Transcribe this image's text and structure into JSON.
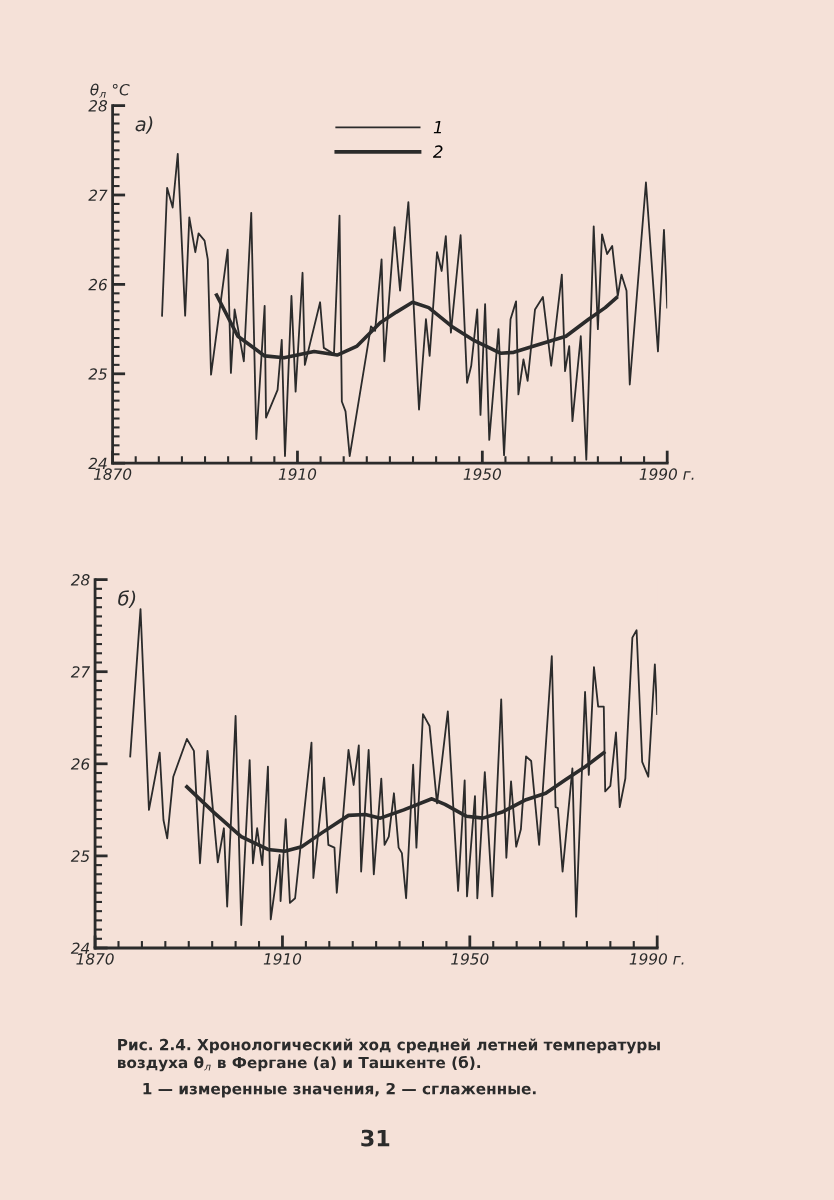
{
  "chart_data": [
    {
      "type": "line",
      "title": "а)",
      "ylabel": "θ$_{л}$ °C",
      "legend": "top",
      "grid": false,
      "marker": "none",
      "line_style": "solid",
      "xlim": [
        1870,
        1990
      ],
      "ylim": [
        24,
        28
      ],
      "xticks": [
        1870,
        {
          "value": 1875,
          "label": null
        },
        {
          "value": 1880,
          "label": null
        },
        {
          "value": 1885,
          "label": null
        },
        {
          "value": 1890,
          "label": null
        },
        {
          "value": 1895,
          "label": null
        },
        {
          "value": 1900,
          "label": null
        },
        {
          "value": 1905,
          "label": null
        },
        1910,
        {
          "value": 1915,
          "label": null
        },
        {
          "value": 1920,
          "label": null
        },
        {
          "value": 1925,
          "label": null
        },
        {
          "value": 1930,
          "label": null
        },
        {
          "value": 1935,
          "label": null
        },
        {
          "value": 1940,
          "label": null
        },
        {
          "value": 1945,
          "label": null
        },
        1950,
        {
          "value": 1955,
          "label": null
        },
        {
          "value": 1960,
          "label": null
        },
        {
          "value": 1965,
          "label": null
        },
        {
          "value": 1970,
          "label": null
        },
        {
          "value": 1975,
          "label": null
        },
        {
          "value": 1980,
          "label": null
        },
        {
          "value": 1985,
          "label": null
        },
        {
          "value": 1990,
          "label": "1990 г."
        }
      ],
      "yticks": [
        24,
        {
          "value": 24.1,
          "label": null
        },
        {
          "value": 24.2,
          "label": null
        },
        {
          "value": 24.3,
          "label": null
        },
        {
          "value": 24.4,
          "label": null
        },
        {
          "value": 24.5,
          "label": null
        },
        {
          "value": 24.6,
          "label": null
        },
        {
          "value": 24.7,
          "label": null
        },
        {
          "value": 24.8,
          "label": null
        },
        {
          "value": 24.9,
          "label": null
        },
        25,
        {
          "value": 25.1,
          "label": null
        },
        {
          "value": 25.2,
          "label": null
        },
        {
          "value": 25.3,
          "label": null
        },
        {
          "value": 25.4,
          "label": null
        },
        {
          "value": 25.5,
          "label": null
        },
        {
          "value": 25.6,
          "label": null
        },
        {
          "value": 25.7,
          "label": null
        },
        {
          "value": 25.8,
          "label": null
        },
        {
          "value": 25.9,
          "label": null
        },
        26,
        {
          "value": 26.1,
          "label": null
        },
        {
          "value": 26.2,
          "label": null
        },
        {
          "value": 26.3,
          "label": null
        },
        {
          "value": 26.4,
          "label": null
        },
        {
          "value": 26.5,
          "label": null
        },
        {
          "value": 26.6,
          "label": null
        },
        {
          "value": 26.7,
          "label": null
        },
        {
          "value": 26.8,
          "label": null
        },
        {
          "value": 26.9,
          "label": null
        },
        27,
        {
          "value": 27.1,
          "label": null
        },
        {
          "value": 27.2,
          "label": null
        },
        {
          "value": 27.3,
          "label": null
        },
        {
          "value": 27.4,
          "label": null
        },
        {
          "value": 27.5,
          "label": null
        },
        {
          "value": 27.6,
          "label": null
        },
        {
          "value": 27.7,
          "label": null
        },
        {
          "value": 27.8,
          "label": null
        },
        {
          "value": 27.9,
          "label": null
        },
        28
      ],
      "series": [
        {
          "name": "1",
          "color": "#2b2b2b",
          "x": [
            1880.7,
            1881.8,
            1883.0,
            1884.1,
            1885.7,
            1886.6,
            1887.9,
            1888.6,
            1889.9,
            1890.6,
            1891.3,
            1894.9,
            1895.6,
            1896.4,
            1898.4,
            1900.0,
            1901.1,
            1902.9,
            1903.2,
            1905.7,
            1906.6,
            1907.3,
            1908.7,
            1909.6,
            1911.1,
            1911.6,
            1914.9,
            1915.7,
            1917.9,
            1919.1,
            1919.6,
            1920.4,
            1921.3,
            1925.9,
            1926.8,
            1928.2,
            1928.8,
            1931.0,
            1932.2,
            1934.0,
            1936.3,
            1937.8,
            1938.6,
            1940.2,
            1941.2,
            1942.1,
            1943.2,
            1945.3,
            1946.7,
            1947.6,
            1948.9,
            1949.6,
            1950.6,
            1951.5,
            1953.5,
            1954.7,
            1956.1,
            1957.3,
            1957.8,
            1958.9,
            1959.8,
            1961.4,
            1963.1,
            1964.9,
            1967.2,
            1967.9,
            1968.8,
            1969.5,
            1971.3,
            1972.5,
            1974.1,
            1975.0,
            1975.9,
            1977.0,
            1978.1,
            1979.3,
            1980.1,
            1981.2,
            1981.9,
            1985.4,
            1988.0,
            1989.3,
            1990.0
          ],
          "values": [
            25.65,
            27.08,
            26.86,
            27.46,
            25.65,
            26.75,
            26.36,
            26.57,
            26.49,
            26.28,
            24.99,
            26.39,
            25.01,
            25.72,
            25.14,
            26.8,
            24.27,
            25.76,
            24.51,
            24.82,
            25.38,
            24.08,
            25.87,
            24.8,
            26.13,
            25.1,
            25.8,
            25.29,
            25.22,
            26.77,
            24.69,
            24.58,
            24.08,
            25.53,
            25.48,
            26.28,
            25.14,
            26.64,
            25.93,
            26.92,
            24.6,
            25.61,
            25.2,
            26.36,
            26.15,
            26.54,
            25.46,
            26.55,
            24.9,
            25.09,
            25.72,
            24.54,
            25.78,
            24.26,
            25.5,
            24.09,
            25.61,
            25.81,
            24.77,
            25.16,
            24.92,
            25.72,
            25.86,
            25.09,
            26.11,
            25.03,
            25.31,
            24.47,
            25.42,
            24.04,
            26.65,
            25.5,
            26.56,
            26.34,
            26.43,
            25.87,
            26.11,
            25.93,
            24.88,
            27.14,
            25.25,
            26.61,
            25.74
          ]
        },
        {
          "name": "2",
          "color": "#2b2b2b",
          "x": [
            1892.5,
            1897.1,
            1902.9,
            1907.1,
            1913.6,
            1918.6,
            1922.9,
            1927.9,
            1931.4,
            1934.9,
            1938.4,
            1943.4,
            1948.3,
            1953.9,
            1956.8,
            1962.4,
            1968.1,
            1973.0,
            1976.6,
            1979.0
          ],
          "values": [
            25.88,
            25.42,
            25.2,
            25.18,
            25.25,
            25.21,
            25.31,
            25.57,
            25.69,
            25.8,
            25.74,
            25.53,
            25.37,
            25.23,
            25.24,
            25.33,
            25.42,
            25.61,
            25.74,
            25.85
          ]
        }
      ]
    },
    {
      "type": "line",
      "title": "б)",
      "grid": false,
      "marker": "none",
      "line_style": "solid",
      "xlim": [
        1870,
        1990
      ],
      "ylim": [
        24,
        28
      ],
      "xticks": [
        1870,
        {
          "value": 1875,
          "label": null
        },
        {
          "value": 1880,
          "label": null
        },
        {
          "value": 1885,
          "label": null
        },
        {
          "value": 1890,
          "label": null
        },
        {
          "value": 1895,
          "label": null
        },
        {
          "value": 1900,
          "label": null
        },
        {
          "value": 1905,
          "label": null
        },
        1910,
        {
          "value": 1915,
          "label": null
        },
        {
          "value": 1920,
          "label": null
        },
        {
          "value": 1925,
          "label": null
        },
        {
          "value": 1930,
          "label": null
        },
        {
          "value": 1935,
          "label": null
        },
        {
          "value": 1940,
          "label": null
        },
        {
          "value": 1945,
          "label": null
        },
        1950,
        {
          "value": 1955,
          "label": null
        },
        {
          "value": 1960,
          "label": null
        },
        {
          "value": 1965,
          "label": null
        },
        {
          "value": 1970,
          "label": null
        },
        {
          "value": 1975,
          "label": null
        },
        {
          "value": 1980,
          "label": null
        },
        {
          "value": 1985,
          "label": null
        },
        {
          "value": 1990,
          "label": "1990 г."
        }
      ],
      "yticks": [
        24,
        {
          "value": 24.1,
          "label": null
        },
        {
          "value": 24.2,
          "label": null
        },
        {
          "value": 24.3,
          "label": null
        },
        {
          "value": 24.4,
          "label": null
        },
        {
          "value": 24.5,
          "label": null
        },
        {
          "value": 24.6,
          "label": null
        },
        {
          "value": 24.7,
          "label": null
        },
        {
          "value": 24.8,
          "label": null
        },
        {
          "value": 24.9,
          "label": null
        },
        25,
        {
          "value": 25.1,
          "label": null
        },
        {
          "value": 25.2,
          "label": null
        },
        {
          "value": 25.3,
          "label": null
        },
        {
          "value": 25.4,
          "label": null
        },
        {
          "value": 25.5,
          "label": null
        },
        {
          "value": 25.6,
          "label": null
        },
        {
          "value": 25.7,
          "label": null
        },
        {
          "value": 25.8,
          "label": null
        },
        {
          "value": 25.9,
          "label": null
        },
        26,
        {
          "value": 26.1,
          "label": null
        },
        {
          "value": 26.2,
          "label": null
        },
        {
          "value": 26.3,
          "label": null
        },
        {
          "value": 26.4,
          "label": null
        },
        {
          "value": 26.5,
          "label": null
        },
        {
          "value": 26.6,
          "label": null
        },
        {
          "value": 26.7,
          "label": null
        },
        {
          "value": 26.8,
          "label": null
        },
        {
          "value": 26.9,
          "label": null
        },
        27,
        {
          "value": 27.1,
          "label": null
        },
        {
          "value": 27.2,
          "label": null
        },
        {
          "value": 27.3,
          "label": null
        },
        {
          "value": 27.4,
          "label": null
        },
        {
          "value": 27.5,
          "label": null
        },
        {
          "value": 27.6,
          "label": null
        },
        {
          "value": 27.7,
          "label": null
        },
        {
          "value": 27.8,
          "label": null
        },
        {
          "value": 27.9,
          "label": null
        },
        28
      ],
      "annotations": [
        "Рис. 2.4. Хронологический ход средней летней температуры\nвоздуха θ$_{л}$ в Фергане (а) и Ташкенте (б).",
        "1 — измеренные значения, 2 — сглаженные.",
        "31"
      ],
      "series": [
        {
          "color": "#2b2b2b",
          "x": [
            1877.5,
            1879.7,
            1881.5,
            1883.8,
            1884.6,
            1885.4,
            1886.7,
            1889.6,
            1891.1,
            1892.4,
            1894.0,
            1896.2,
            1897.5,
            1898.2,
            1900.0,
            1901.2,
            1903.0,
            1903.7,
            1904.6,
            1905.7,
            1906.9,
            1907.5,
            1909.4,
            1909.6,
            1910.7,
            1911.6,
            1912.7,
            1916.2,
            1916.6,
            1918.9,
            1919.8,
            1921.1,
            1921.6,
            1924.1,
            1925.2,
            1926.3,
            1926.8,
            1928.4,
            1929.5,
            1931.1,
            1931.8,
            1932.7,
            1933.8,
            1934.8,
            1935.5,
            1936.4,
            1937.9,
            1938.6,
            1940.0,
            1941.4,
            1943.0,
            1945.3,
            1947.5,
            1948.9,
            1949.4,
            1951.1,
            1951.6,
            1953.2,
            1954.8,
            1956.7,
            1957.8,
            1958.8,
            1959.9,
            1960.9,
            1962.0,
            1963.1,
            1964.8,
            1967.5,
            1968.3,
            1968.8,
            1969.8,
            1971.9,
            1972.7,
            1974.6,
            1975.4,
            1976.5,
            1977.4,
            1978.6,
            1978.9,
            1980.0,
            1981.2,
            1982.0,
            1983.2,
            1984.7,
            1985.6,
            1986.8,
            1988.1,
            1989.5,
            1990.0
          ],
          "values": [
            26.08,
            27.68,
            25.5,
            26.12,
            25.39,
            25.19,
            25.86,
            26.27,
            26.14,
            24.92,
            26.14,
            24.93,
            25.3,
            24.45,
            26.52,
            24.25,
            26.04,
            24.92,
            25.3,
            24.9,
            25.97,
            24.31,
            25.01,
            24.51,
            25.4,
            24.49,
            24.54,
            26.23,
            24.76,
            25.85,
            25.12,
            25.09,
            24.6,
            26.15,
            25.77,
            26.2,
            24.83,
            26.15,
            24.8,
            25.84,
            25.12,
            25.21,
            25.68,
            25.09,
            25.03,
            24.54,
            25.99,
            25.09,
            26.54,
            26.41,
            25.57,
            26.57,
            24.62,
            25.82,
            24.56,
            25.65,
            24.54,
            25.91,
            24.56,
            26.7,
            24.98,
            25.81,
            25.1,
            25.29,
            26.08,
            26.03,
            25.12,
            27.17,
            25.53,
            25.52,
            24.83,
            25.95,
            24.34,
            26.78,
            25.88,
            27.05,
            26.62,
            26.62,
            25.7,
            25.76,
            26.34,
            25.53,
            25.84,
            27.37,
            27.45,
            26.02,
            25.86,
            27.08,
            26.54
          ]
        },
        {
          "color": "#2b2b2b",
          "x": [
            1889.6,
            1895.4,
            1901.2,
            1906.9,
            1910.5,
            1914.1,
            1918.4,
            1924.1,
            1927.7,
            1930.9,
            1935.9,
            1941.9,
            1944.7,
            1949.3,
            1952.8,
            1957.1,
            1962.0,
            1966.2,
            1970.5,
            1974.7,
            1978.6
          ],
          "values": [
            25.75,
            25.47,
            25.21,
            25.07,
            25.05,
            25.1,
            25.25,
            25.44,
            25.45,
            25.41,
            25.5,
            25.62,
            25.56,
            25.43,
            25.41,
            25.48,
            25.61,
            25.68,
            25.83,
            25.97,
            26.12
          ]
        }
      ]
    }
  ]
}
